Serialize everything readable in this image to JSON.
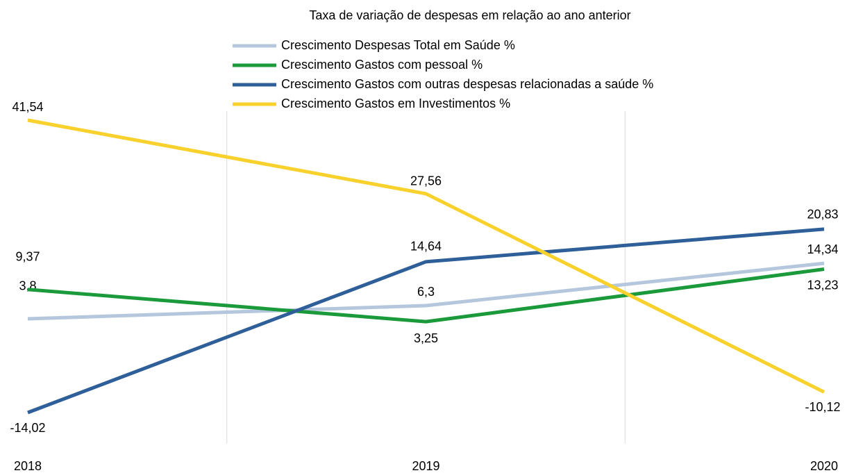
{
  "chart_data": {
    "type": "line",
    "title": "Taxa de variação de despesas em relação ao ano anterior",
    "categories": [
      "2018",
      "2019",
      "2020"
    ],
    "grid": true,
    "series": [
      {
        "name": "Crescimento Despesas Total em Saúde %",
        "color": "#b4c7dc",
        "values": [
          3.8,
          6.3,
          14.34
        ],
        "value_labels": [
          "3,8",
          "6,3",
          "14,34"
        ]
      },
      {
        "name": "Crescimento Gastos com pessoal %",
        "color": "#1a9a3a",
        "values": [
          9.37,
          3.25,
          13.23
        ],
        "value_labels": [
          "9,37",
          "3,25",
          "13,23"
        ]
      },
      {
        "name": "Crescimento Gastos com outras despesas relacionadas a saúde %",
        "color": "#2e5f98",
        "values": [
          -14.02,
          14.64,
          20.83
        ],
        "value_labels": [
          "-14,02",
          "14,64",
          "20,83"
        ]
      },
      {
        "name": "Crescimento Gastos em Investimentos %",
        "color": "#f9d12c",
        "values": [
          41.54,
          27.56,
          -10.12
        ],
        "value_labels": [
          "41,54",
          "27,56",
          "-10,12"
        ]
      }
    ]
  }
}
